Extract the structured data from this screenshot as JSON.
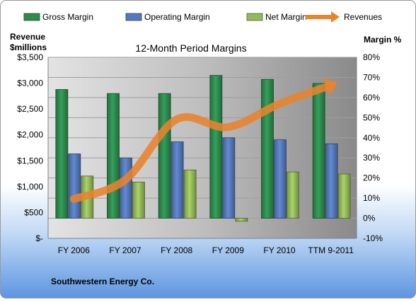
{
  "chart_data": {
    "type": "bar",
    "title": "12-Month Period Margins",
    "categories": [
      "FY 2006",
      "FY 2007",
      "FY 2008",
      "FY 2009",
      "FY 2010",
      "TTM 9-2011"
    ],
    "left_axis": {
      "label_line1": "Revenue",
      "label_line2": "$millions",
      "ticks": [
        0,
        500,
        1000,
        1500,
        2000,
        2500,
        3000,
        3500
      ],
      "tick_labels": [
        "$-",
        "$500",
        "$1,000",
        "$1,500",
        "$2,000",
        "$2,500",
        "$3,000",
        "$3,500"
      ],
      "ylim": [
        0,
        3500
      ]
    },
    "right_axis": {
      "label": "Margin %",
      "ticks": [
        -10,
        0,
        10,
        20,
        30,
        40,
        50,
        60,
        70,
        80
      ],
      "tick_labels": [
        "-10%",
        "0%",
        "10%",
        "20%",
        "30%",
        "40%",
        "50%",
        "60%",
        "70%",
        "80%"
      ],
      "ylim": [
        -10,
        80
      ]
    },
    "series": [
      {
        "name": "Gross Margin",
        "kind": "bar",
        "axis": "right",
        "color": "#2e8b4e",
        "values": [
          64,
          62,
          62,
          71,
          69,
          67
        ]
      },
      {
        "name": "Operating Margin",
        "kind": "bar",
        "axis": "right",
        "color": "#5578b8",
        "values": [
          32,
          30,
          38,
          40,
          39,
          37
        ]
      },
      {
        "name": "Net Margin",
        "kind": "bar",
        "axis": "right",
        "color": "#94b85a",
        "values": [
          21,
          18,
          24,
          -1.5,
          23,
          22
        ]
      },
      {
        "name": "Revenues",
        "kind": "line",
        "axis": "left",
        "color": "#e8832e",
        "values": [
          760,
          1130,
          2300,
          2150,
          2600,
          2960
        ]
      }
    ],
    "grid": true,
    "legend_position": "top",
    "footer": "Southwestern Energy Co."
  }
}
